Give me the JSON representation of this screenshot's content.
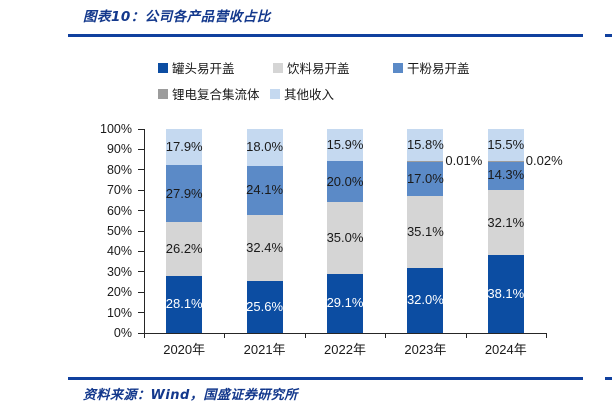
{
  "header": {
    "title": "图表10：公司各产品营收占比"
  },
  "footer": {
    "source": "资料来源：Wind，国盛证券研究所"
  },
  "colors": {
    "brand_line": "#10409E",
    "brand_text": "#13388C",
    "axis": "#262626",
    "label_dark": "#1a1a1a",
    "label_light": "#ffffff"
  },
  "chart_data": {
    "type": "bar",
    "stacked": true,
    "title": "公司各产品营收占比",
    "xlabel": "",
    "ylabel": "",
    "ylim": [
      0,
      100
    ],
    "grid": false,
    "legend_position": "top",
    "categories": [
      "2020年",
      "2021年",
      "2022年",
      "2023年",
      "2024年"
    ],
    "y_ticks": [
      "0%",
      "10%",
      "20%",
      "30%",
      "40%",
      "50%",
      "60%",
      "70%",
      "80%",
      "90%",
      "100%"
    ],
    "series": [
      {
        "name": "罐头易开盖",
        "color": "#0C4DA2",
        "label_color": "#ffffff",
        "values": [
          28.1,
          25.6,
          29.1,
          32.0,
          38.1
        ],
        "labels": [
          "28.1%",
          "25.6%",
          "29.1%",
          "32.0%",
          "38.1%"
        ]
      },
      {
        "name": "饮料易开盖",
        "color": "#D5D5D5",
        "label_color": "#1a1a1a",
        "values": [
          26.2,
          32.4,
          35.0,
          35.1,
          32.1
        ],
        "labels": [
          "26.2%",
          "32.4%",
          "35.0%",
          "35.1%",
          "32.1%"
        ]
      },
      {
        "name": "干粉易开盖",
        "color": "#5B8AC7",
        "label_color": "#1a1a1a",
        "values": [
          27.9,
          24.1,
          20.0,
          17.0,
          14.3
        ],
        "labels": [
          "27.9%",
          "24.1%",
          "20.0%",
          "17.0%",
          "14.3%"
        ]
      },
      {
        "name": "锂电复合集流体",
        "color": "#9C9C9C",
        "label_color": "#1a1a1a",
        "values": [
          null,
          null,
          null,
          0.01,
          0.02
        ],
        "labels": [
          null,
          null,
          null,
          "0.01%",
          "0.02%"
        ]
      },
      {
        "name": "其他收入",
        "color": "#C5D9F0",
        "label_color": "#1a1a1a",
        "values": [
          17.9,
          18.0,
          15.9,
          15.8,
          15.5
        ],
        "labels": [
          "17.9%",
          "18.0%",
          "15.9%",
          "15.8%",
          "15.5%"
        ]
      }
    ]
  }
}
